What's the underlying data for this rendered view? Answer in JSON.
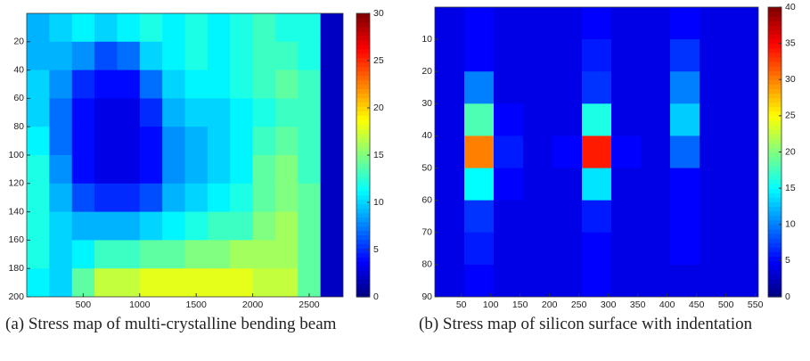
{
  "chart_data": [
    {
      "type": "heatmap",
      "colormap": "jet",
      "caption": "(a) Stress map of multi-crystalline bending beam",
      "x": [
        100,
        300,
        500,
        700,
        900,
        1100,
        1300,
        1500,
        1700,
        1900,
        2100,
        2300,
        2500,
        2700
      ],
      "y": [
        10,
        30,
        50,
        70,
        90,
        110,
        130,
        150,
        170,
        190
      ],
      "z": [
        [
          9,
          10,
          11,
          10,
          11,
          12,
          11,
          12,
          11,
          12,
          13,
          12,
          12,
          2
        ],
        [
          9,
          9,
          8,
          6,
          7,
          10,
          11,
          12,
          11,
          12,
          13,
          13,
          12,
          2
        ],
        [
          10,
          8,
          5,
          4,
          4,
          7,
          10,
          11,
          11,
          12,
          13,
          14,
          13,
          2
        ],
        [
          10,
          7,
          4,
          3,
          3,
          5,
          9,
          10,
          10,
          11,
          12,
          13,
          13,
          2
        ],
        [
          11,
          7,
          4,
          3,
          3,
          4,
          8,
          9,
          10,
          11,
          13,
          14,
          13,
          2
        ],
        [
          12,
          8,
          4,
          3,
          3,
          4,
          8,
          9,
          10,
          11,
          14,
          15,
          13,
          2
        ],
        [
          12,
          9,
          6,
          5,
          5,
          6,
          9,
          10,
          11,
          12,
          14,
          15,
          14,
          2
        ],
        [
          12,
          10,
          9,
          9,
          9,
          10,
          11,
          12,
          13,
          13,
          15,
          16,
          14,
          2
        ],
        [
          12,
          10,
          11,
          13,
          13,
          14,
          14,
          15,
          15,
          16,
          16,
          16,
          14,
          2
        ],
        [
          11,
          10,
          14,
          17,
          17,
          18,
          18,
          18,
          18,
          18,
          17,
          17,
          14,
          2
        ]
      ],
      "xlim": [
        0,
        2800
      ],
      "xticks": [
        500,
        1000,
        1500,
        2000,
        2500
      ],
      "ylim": [
        0,
        200
      ],
      "yticks": [
        20,
        40,
        60,
        80,
        100,
        120,
        140,
        160,
        180,
        200
      ],
      "y_reversed": true,
      "clim": [
        0,
        30
      ],
      "cticks": [
        0,
        5,
        10,
        15,
        20,
        25,
        30
      ]
    },
    {
      "type": "heatmap",
      "colormap": "jet",
      "caption": "(b) Stress map of silicon surface with indentation",
      "x": [
        30,
        80,
        130,
        180,
        230,
        280,
        330,
        380,
        430,
        480,
        530
      ],
      "y": [
        5,
        15,
        25,
        35,
        45,
        55,
        65,
        75,
        85
      ],
      "z": [
        [
          4,
          5,
          4,
          4,
          4,
          5,
          4,
          4,
          5,
          4,
          4
        ],
        [
          4,
          5,
          4,
          4,
          4,
          6,
          4,
          4,
          7,
          4,
          4
        ],
        [
          4,
          10,
          4,
          4,
          4,
          7,
          4,
          4,
          10,
          4,
          4
        ],
        [
          4,
          18,
          5,
          4,
          4,
          16,
          4,
          4,
          13,
          4,
          4
        ],
        [
          4,
          30,
          6,
          4,
          5,
          34,
          5,
          4,
          9,
          4,
          4
        ],
        [
          4,
          15,
          5,
          4,
          4,
          14,
          4,
          4,
          5,
          4,
          4
        ],
        [
          4,
          7,
          4,
          4,
          4,
          6,
          4,
          4,
          5,
          4,
          4
        ],
        [
          4,
          6,
          4,
          4,
          4,
          5,
          4,
          4,
          5,
          4,
          4
        ],
        [
          4,
          5,
          4,
          4,
          4,
          5,
          4,
          4,
          4,
          4,
          4
        ]
      ],
      "xlim": [
        5,
        555
      ],
      "xticks": [
        50,
        100,
        150,
        200,
        250,
        300,
        350,
        400,
        450,
        500,
        550
      ],
      "ylim": [
        0,
        90
      ],
      "yticks": [
        10,
        20,
        30,
        40,
        50,
        60,
        70,
        80,
        90
      ],
      "y_reversed": true,
      "clim": [
        0,
        40
      ],
      "cticks": [
        0,
        5,
        10,
        15,
        20,
        25,
        30,
        35,
        40
      ]
    }
  ]
}
